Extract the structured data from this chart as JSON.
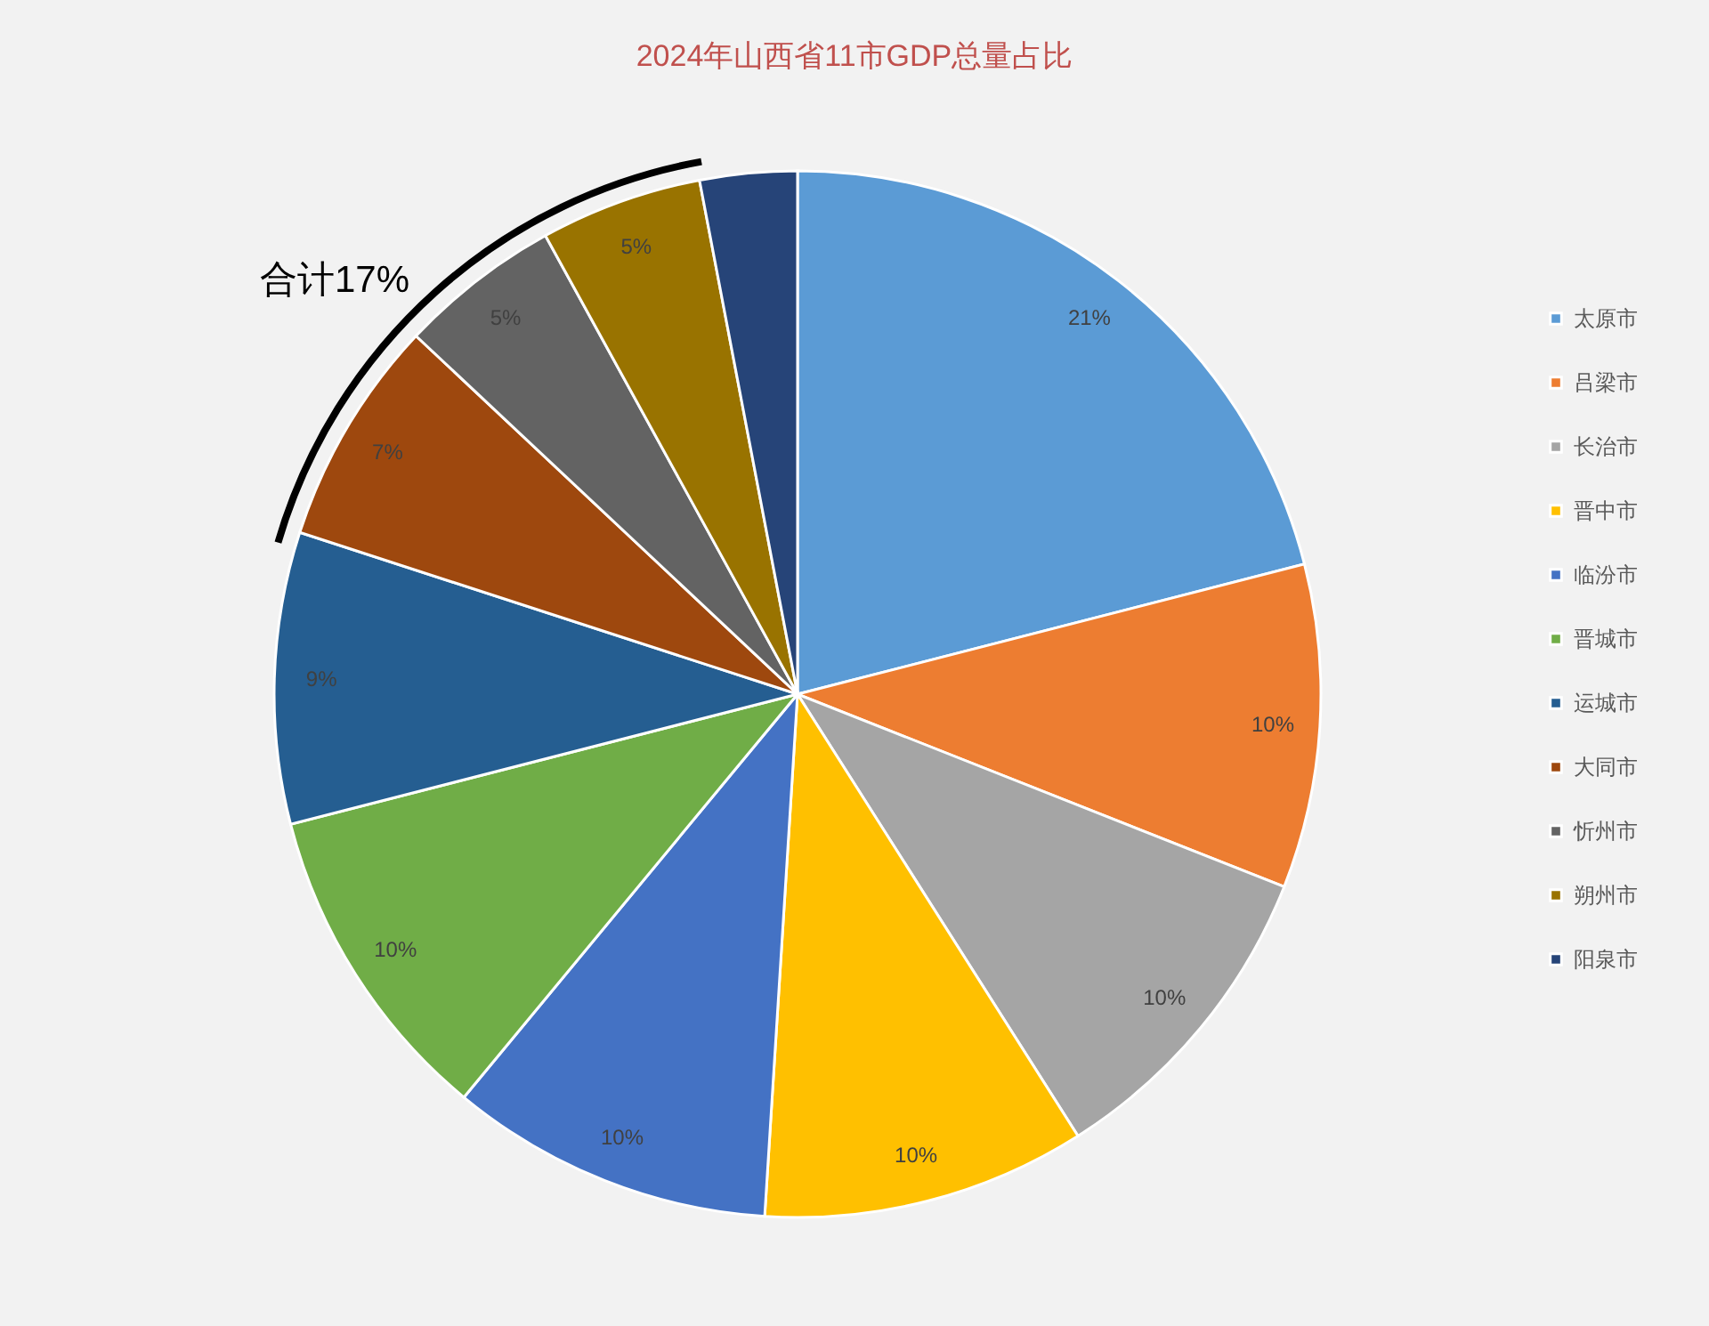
{
  "chart_data": {
    "type": "pie",
    "title": "2024年山西省11市GDP总量占比",
    "categories": [
      "太原市",
      "吕梁市",
      "长治市",
      "晋中市",
      "临汾市",
      "晋城市",
      "运城市",
      "大同市",
      "忻州市",
      "朔州市",
      "阳泉市"
    ],
    "values": [
      21,
      10,
      10,
      10,
      10,
      10,
      9,
      7,
      5,
      5,
      3
    ],
    "colors": [
      "#5b9bd5",
      "#ed7d31",
      "#a5a5a5",
      "#ffc000",
      "#4472c4",
      "#70ad47",
      "#255e91",
      "#9e480e",
      "#636363",
      "#997300",
      "#264478"
    ],
    "value_labels": [
      "21%",
      "10%",
      "10%",
      "10%",
      "10%",
      "10%",
      "9%",
      "7%",
      "5%",
      "5%",
      null
    ],
    "annotations": [
      "合计17%"
    ],
    "legend": "right"
  }
}
